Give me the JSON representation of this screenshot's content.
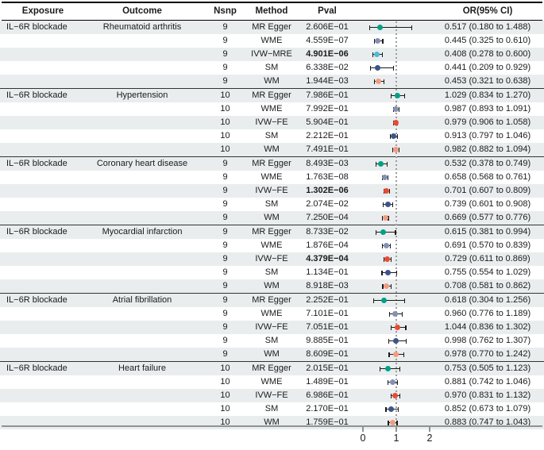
{
  "header": {
    "exposure": "Exposure",
    "outcome": "Outcome",
    "nsnp": "Nsnp",
    "method": "Method",
    "pval": "Pval",
    "or_ci": "OR(95% CI)"
  },
  "chart_data": {
    "type": "scatter",
    "subtype": "forest-plot",
    "title": "",
    "xlabel": "",
    "x_tick_labels": [
      "0",
      "1",
      "2"
    ],
    "x_tick_values": [
      0,
      1,
      2
    ],
    "xlim": [
      -0.2,
      2.3
    ],
    "reference_line": 1,
    "error_bar_color": "#1a1a1a",
    "row_stripe_color": "#e9edee",
    "method_colors": {
      "MR Egger": "#00A087",
      "WME": "#8491B4",
      "IVW−MRE": "#4DBBD5",
      "IVW−FE": "#E64B35",
      "SM": "#3C5488",
      "WM": "#F39B7F"
    },
    "blocks": [
      {
        "exposure": "IL−6R blockade",
        "outcome": "Rheumatoid arthritis",
        "rows": [
          {
            "nsnp": "9",
            "method": "MR Egger",
            "pval": "2.606E−01",
            "bold": false,
            "or": 0.517,
            "lo": 0.18,
            "hi": 1.488,
            "or_ci": "0.517 (0.180 to 1.488)"
          },
          {
            "nsnp": "9",
            "method": "WME",
            "pval": "4.559E−07",
            "bold": false,
            "or": 0.445,
            "lo": 0.325,
            "hi": 0.61,
            "or_ci": "0.445 (0.325 to 0.610)"
          },
          {
            "nsnp": "9",
            "method": "IVW−MRE",
            "pval": "4.901E−06",
            "bold": true,
            "or": 0.408,
            "lo": 0.278,
            "hi": 0.6,
            "or_ci": "0.408 (0.278 to 0.600)"
          },
          {
            "nsnp": "9",
            "method": "SM",
            "pval": "6.338E−02",
            "bold": false,
            "or": 0.441,
            "lo": 0.209,
            "hi": 0.929,
            "or_ci": "0.441 (0.209 to 0.929)"
          },
          {
            "nsnp": "9",
            "method": "WM",
            "pval": "1.944E−03",
            "bold": false,
            "or": 0.453,
            "lo": 0.321,
            "hi": 0.638,
            "or_ci": "0.453 (0.321 to 0.638)"
          }
        ]
      },
      {
        "exposure": "IL−6R blockade",
        "outcome": "Hypertension",
        "rows": [
          {
            "nsnp": "10",
            "method": "MR Egger",
            "pval": "7.986E−01",
            "bold": false,
            "or": 1.029,
            "lo": 0.834,
            "hi": 1.27,
            "or_ci": "1.029 (0.834 to 1.270)"
          },
          {
            "nsnp": "10",
            "method": "WME",
            "pval": "7.992E−01",
            "bold": false,
            "or": 0.987,
            "lo": 0.893,
            "hi": 1.091,
            "or_ci": "0.987 (0.893 to 1.091)"
          },
          {
            "nsnp": "10",
            "method": "IVW−FE",
            "pval": "5.904E−01",
            "bold": false,
            "or": 0.979,
            "lo": 0.906,
            "hi": 1.058,
            "or_ci": "0.979 (0.906 to 1.058)"
          },
          {
            "nsnp": "10",
            "method": "SM",
            "pval": "2.212E−01",
            "bold": false,
            "or": 0.913,
            "lo": 0.797,
            "hi": 1.046,
            "or_ci": "0.913 (0.797 to 1.046)"
          },
          {
            "nsnp": "10",
            "method": "WM",
            "pval": "7.491E−01",
            "bold": false,
            "or": 0.982,
            "lo": 0.882,
            "hi": 1.094,
            "or_ci": "0.982 (0.882 to 1.094)"
          }
        ]
      },
      {
        "exposure": "IL−6R blockade",
        "outcome": "Coronary heart disease",
        "rows": [
          {
            "nsnp": "9",
            "method": "MR Egger",
            "pval": "8.493E−03",
            "bold": false,
            "or": 0.532,
            "lo": 0.378,
            "hi": 0.749,
            "or_ci": "0.532 (0.378 to 0.749)"
          },
          {
            "nsnp": "9",
            "method": "WME",
            "pval": "1.763E−08",
            "bold": false,
            "or": 0.658,
            "lo": 0.568,
            "hi": 0.761,
            "or_ci": "0.658 (0.568 to 0.761)"
          },
          {
            "nsnp": "9",
            "method": "IVW−FE",
            "pval": "1.302E−06",
            "bold": true,
            "or": 0.701,
            "lo": 0.607,
            "hi": 0.809,
            "or_ci": "0.701 (0.607 to 0.809)"
          },
          {
            "nsnp": "9",
            "method": "SM",
            "pval": "2.074E−02",
            "bold": false,
            "or": 0.739,
            "lo": 0.601,
            "hi": 0.908,
            "or_ci": "0.739 (0.601 to 0.908)"
          },
          {
            "nsnp": "9",
            "method": "WM",
            "pval": "7.250E−04",
            "bold": false,
            "or": 0.669,
            "lo": 0.577,
            "hi": 0.776,
            "or_ci": "0.669 (0.577 to 0.776)"
          }
        ]
      },
      {
        "exposure": "IL−6R blockade",
        "outcome": "Myocardial infarction",
        "rows": [
          {
            "nsnp": "9",
            "method": "MR Egger",
            "pval": "8.733E−02",
            "bold": false,
            "or": 0.615,
            "lo": 0.381,
            "hi": 0.994,
            "or_ci": "0.615 (0.381 to 0.994)"
          },
          {
            "nsnp": "9",
            "method": "WME",
            "pval": "1.876E−04",
            "bold": false,
            "or": 0.691,
            "lo": 0.57,
            "hi": 0.839,
            "or_ci": "0.691 (0.570 to 0.839)"
          },
          {
            "nsnp": "9",
            "method": "IVW−FE",
            "pval": "4.379E−04",
            "bold": true,
            "or": 0.729,
            "lo": 0.611,
            "hi": 0.869,
            "or_ci": "0.729 (0.611 to 0.869)"
          },
          {
            "nsnp": "9",
            "method": "SM",
            "pval": "1.134E−01",
            "bold": false,
            "or": 0.755,
            "lo": 0.554,
            "hi": 1.029,
            "or_ci": "0.755 (0.554 to 1.029)"
          },
          {
            "nsnp": "9",
            "method": "WM",
            "pval": "8.918E−03",
            "bold": false,
            "or": 0.708,
            "lo": 0.581,
            "hi": 0.862,
            "or_ci": "0.708 (0.581 to 0.862)"
          }
        ]
      },
      {
        "exposure": "IL−6R blockade",
        "outcome": "Atrial fibrillation",
        "rows": [
          {
            "nsnp": "9",
            "method": "MR Egger",
            "pval": "2.252E−01",
            "bold": false,
            "or": 0.618,
            "lo": 0.304,
            "hi": 1.256,
            "or_ci": "0.618 (0.304 to 1.256)"
          },
          {
            "nsnp": "9",
            "method": "WME",
            "pval": "7.101E−01",
            "bold": false,
            "or": 0.96,
            "lo": 0.776,
            "hi": 1.189,
            "or_ci": "0.960 (0.776 to 1.189)"
          },
          {
            "nsnp": "9",
            "method": "IVW−FE",
            "pval": "7.051E−01",
            "bold": false,
            "or": 1.044,
            "lo": 0.836,
            "hi": 1.302,
            "or_ci": "1.044 (0.836 to 1.302)"
          },
          {
            "nsnp": "9",
            "method": "SM",
            "pval": "9.885E−01",
            "bold": false,
            "or": 0.998,
            "lo": 0.762,
            "hi": 1.307,
            "or_ci": "0.998 (0.762 to 1.307)"
          },
          {
            "nsnp": "9",
            "method": "WM",
            "pval": "8.609E−01",
            "bold": false,
            "or": 0.978,
            "lo": 0.77,
            "hi": 1.242,
            "or_ci": "0.978 (0.770 to 1.242)"
          }
        ]
      },
      {
        "exposure": "IL−6R blockade",
        "outcome": "Heart failure",
        "rows": [
          {
            "nsnp": "10",
            "method": "MR Egger",
            "pval": "2.015E−01",
            "bold": false,
            "or": 0.753,
            "lo": 0.505,
            "hi": 1.123,
            "or_ci": "0.753 (0.505 to 1.123)"
          },
          {
            "nsnp": "10",
            "method": "WME",
            "pval": "1.489E−01",
            "bold": false,
            "or": 0.881,
            "lo": 0.742,
            "hi": 1.046,
            "or_ci": "0.881 (0.742 to 1.046)"
          },
          {
            "nsnp": "10",
            "method": "IVW−FE",
            "pval": "6.986E−01",
            "bold": false,
            "or": 0.97,
            "lo": 0.831,
            "hi": 1.132,
            "or_ci": "0.970 (0.831 to 1.132)"
          },
          {
            "nsnp": "10",
            "method": "SM",
            "pval": "2.170E−01",
            "bold": false,
            "or": 0.852,
            "lo": 0.673,
            "hi": 1.079,
            "or_ci": "0.852 (0.673 to 1.079)"
          },
          {
            "nsnp": "10",
            "method": "WM",
            "pval": "1.759E−01",
            "bold": false,
            "or": 0.883,
            "lo": 0.747,
            "hi": 1.043,
            "or_ci": "0.883 (0.747 to 1.043)"
          }
        ]
      }
    ]
  }
}
